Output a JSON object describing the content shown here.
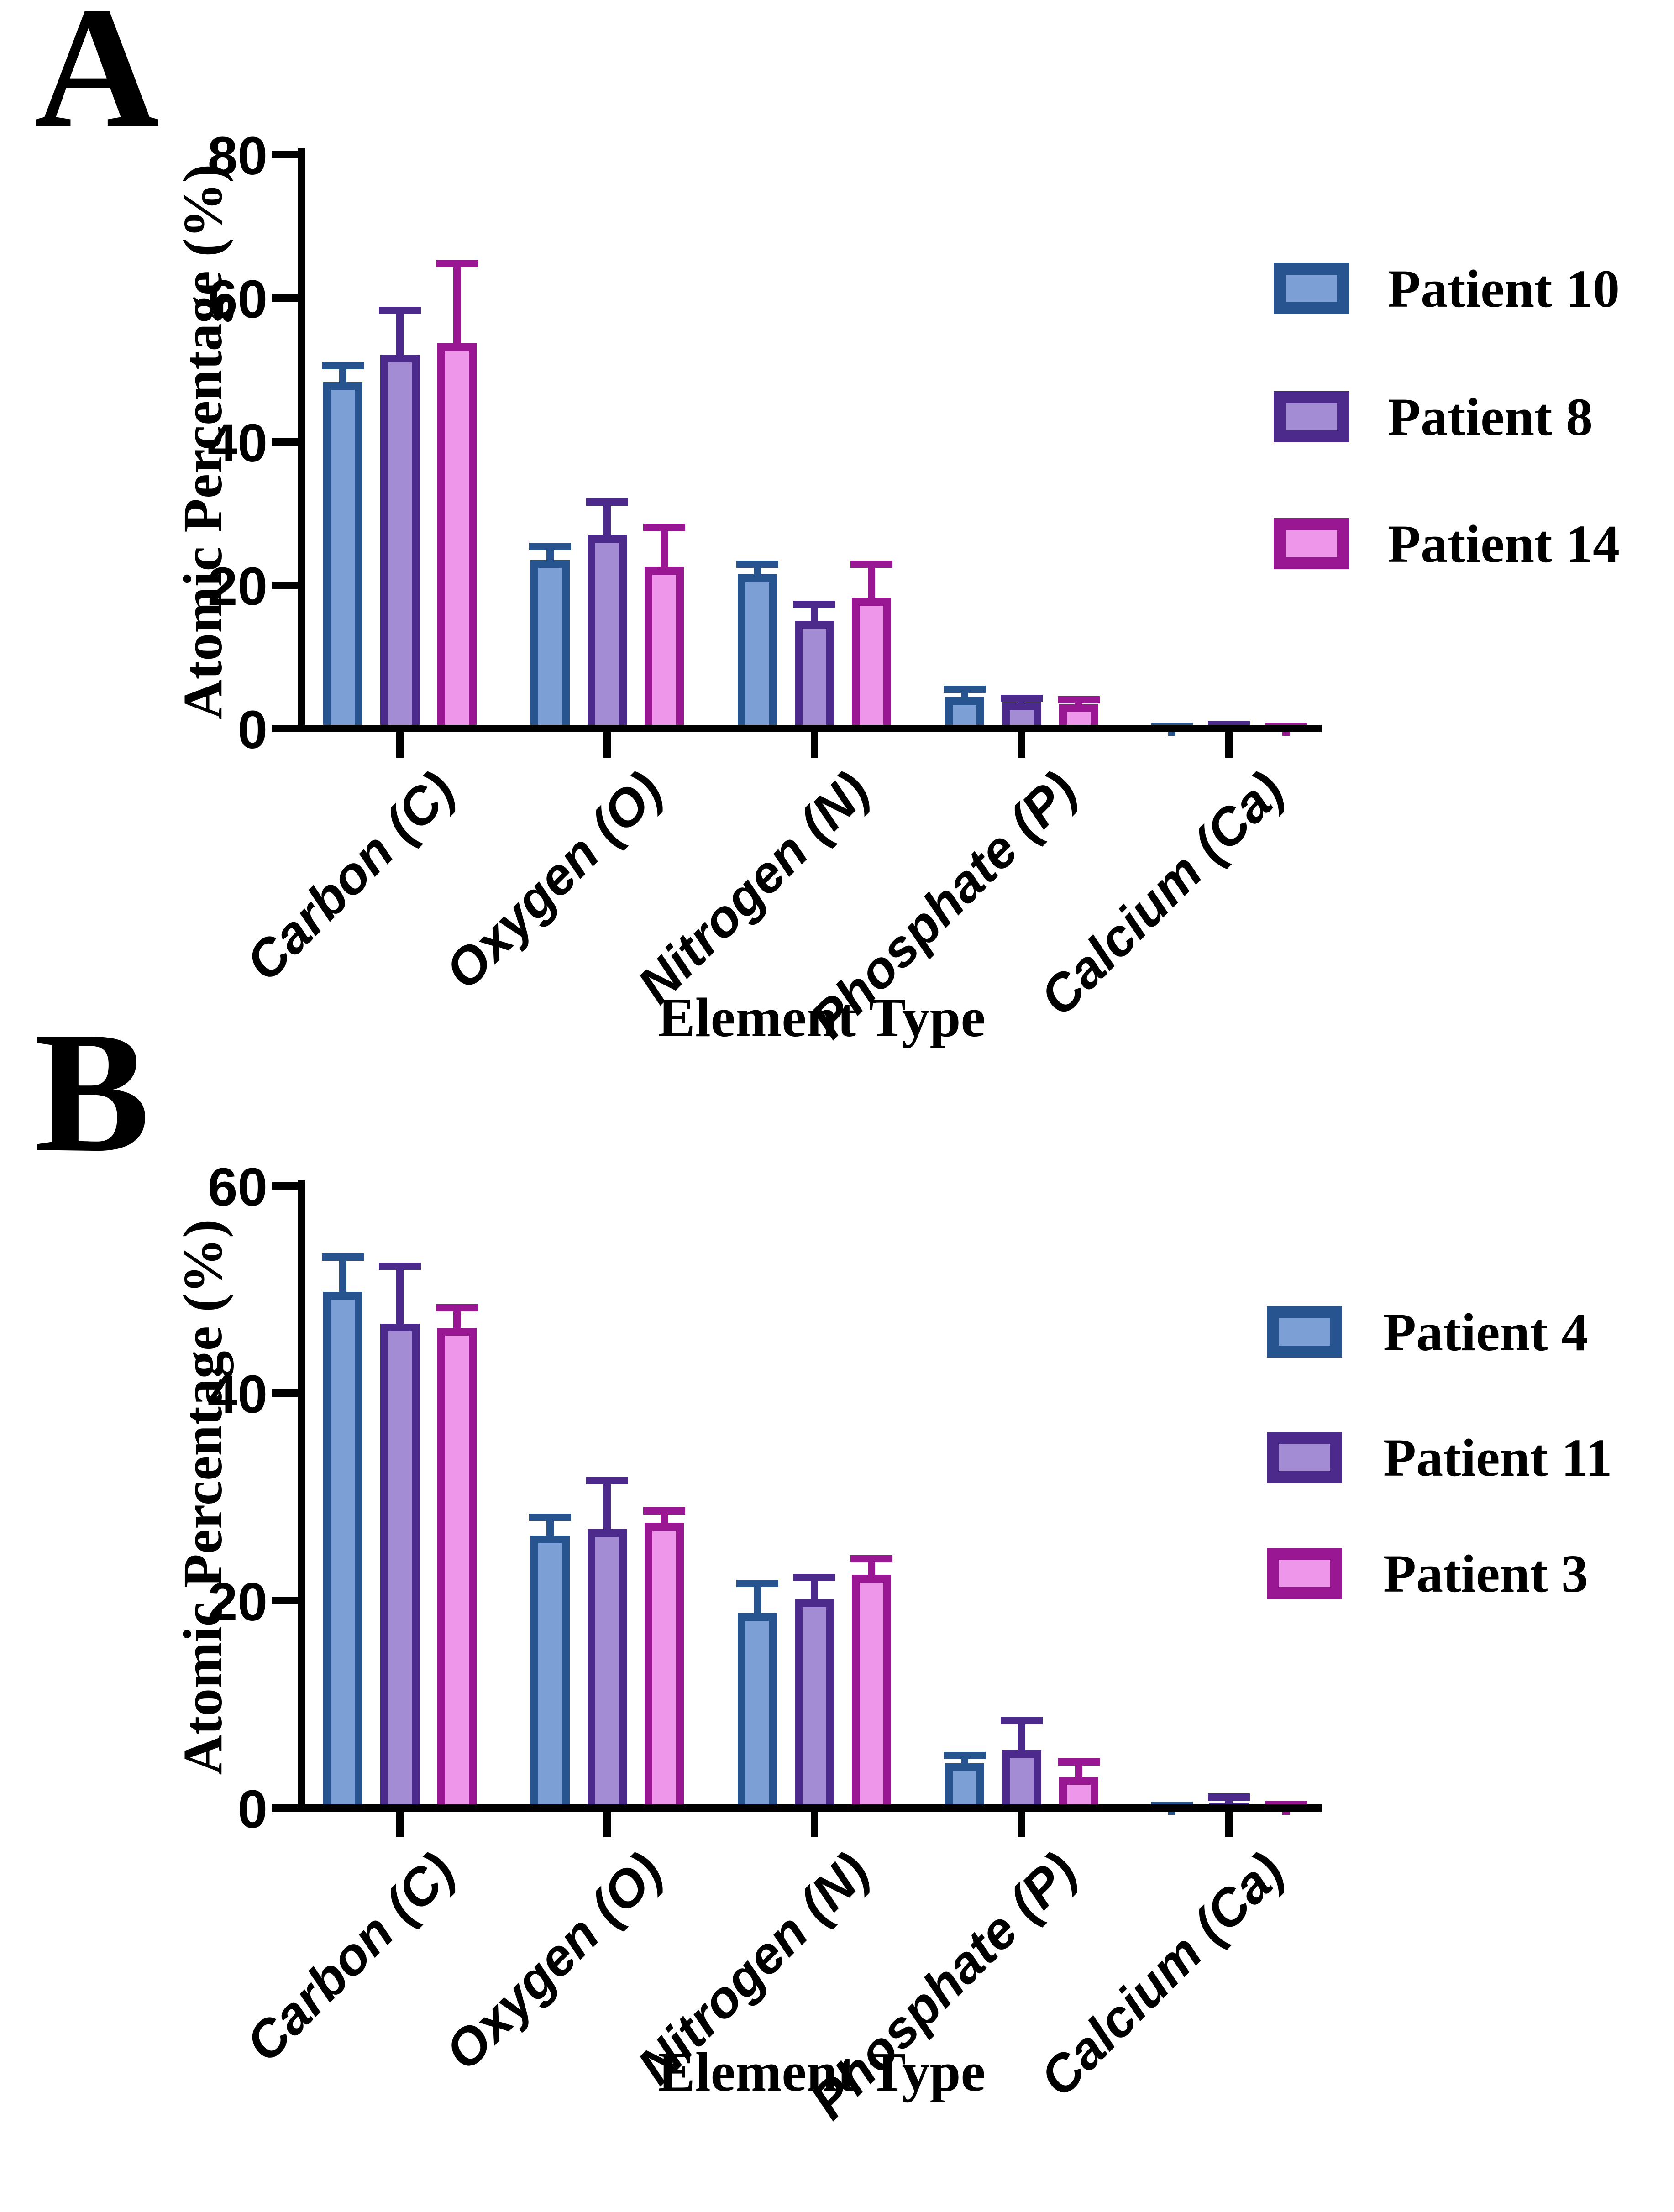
{
  "figure": {
    "background": "#FFFFFF",
    "text_color": "#000000",
    "axis_color": "#000000"
  },
  "colors": {
    "blue": {
      "edge": "#27538F",
      "fill": "#7CA0D6"
    },
    "purple": {
      "edge": "#4B2A8B",
      "fill": "#A48CD5"
    },
    "magenta": {
      "edge": "#991792",
      "fill": "#EE96EA"
    }
  },
  "chart_data": [
    {
      "type": "bar",
      "panel_label": "A",
      "title": "",
      "xlabel": "Element Type",
      "ylabel": "Atomic Percentage (%)",
      "categories": [
        "Carbon (C)",
        "Oxygen (O)",
        "Nitrogen (N)",
        "Phosphate (P)",
        "Calcium (Ca)"
      ],
      "yticks": [
        "0",
        "20",
        "40",
        "60",
        "80"
      ],
      "ytick_values": [
        0,
        20,
        40,
        60,
        80
      ],
      "ylim": [
        0,
        80
      ],
      "grid": false,
      "legend_position": "right",
      "error_bars": "upper SD whiskers with caps",
      "series": [
        {
          "name": "Patient 10",
          "color": "blue",
          "values": [
            48.3,
            23.5,
            21.5,
            4.3,
            0.5
          ],
          "errors_up": [
            2.8,
            2.4,
            1.9,
            1.7,
            0.3
          ]
        },
        {
          "name": "Patient 8",
          "color": "purple",
          "values": [
            52.1,
            27.0,
            15.0,
            3.6,
            0.6
          ],
          "errors_up": [
            6.7,
            5.1,
            2.8,
            1.1,
            0.4
          ]
        },
        {
          "name": "Patient 14",
          "color": "magenta",
          "values": [
            53.7,
            22.5,
            18.2,
            3.4,
            0.5
          ],
          "errors_up": [
            11.6,
            6.1,
            5.2,
            1.1,
            0.3
          ]
        }
      ]
    },
    {
      "type": "bar",
      "panel_label": "B",
      "title": "",
      "xlabel": "Element Type",
      "ylabel": "Atomic Percentage (%)",
      "categories": [
        "Carbon (C)",
        "Oxygen (O)",
        "Nitrogen (N)",
        "Phosphate (P)",
        "Calcium (Ca)"
      ],
      "yticks": [
        "0",
        "20",
        "40",
        "60"
      ],
      "ytick_values": [
        0,
        20,
        40,
        60
      ],
      "ylim": [
        0,
        60
      ],
      "grid": false,
      "legend_position": "right",
      "error_bars": "upper SD whiskers with caps",
      "series": [
        {
          "name": "Patient 4",
          "color": "blue",
          "values": [
            49.8,
            26.3,
            18.8,
            4.3,
            0.4
          ],
          "errors_up": [
            3.7,
            2.1,
            3.2,
            1.1,
            0.2
          ]
        },
        {
          "name": "Patient 11",
          "color": "purple",
          "values": [
            46.7,
            26.9,
            20.1,
            5.6,
            0.5
          ],
          "errors_up": [
            5.9,
            5.0,
            2.5,
            3.2,
            0.9
          ]
        },
        {
          "name": "Patient 3",
          "color": "magenta",
          "values": [
            46.3,
            27.5,
            22.5,
            3.0,
            0.4
          ],
          "errors_up": [
            2.3,
            1.5,
            1.9,
            1.8,
            0.3
          ]
        }
      ]
    }
  ]
}
